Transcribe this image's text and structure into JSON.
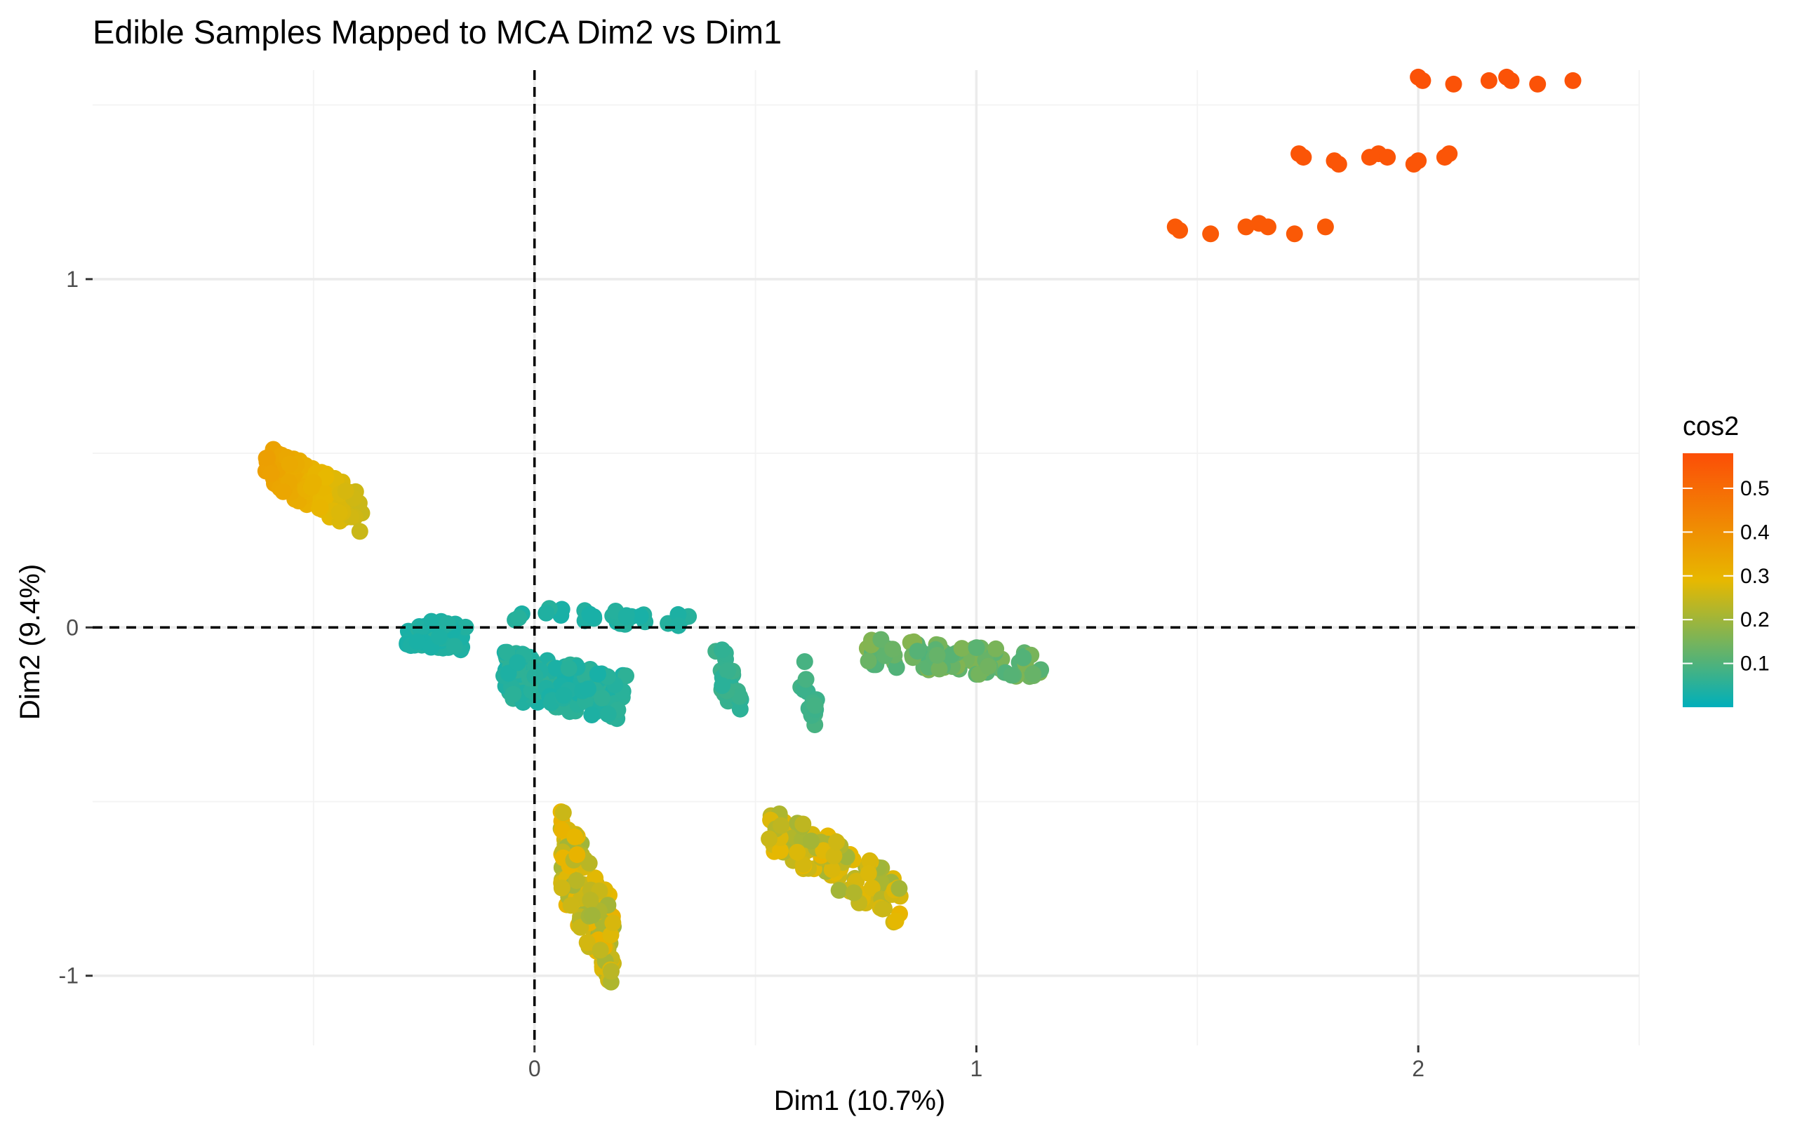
{
  "chart_data": {
    "type": "scatter",
    "title": "Edible Samples Mapped to MCA Dim2 vs Dim1",
    "xlabel": "Dim1 (10.7%)",
    "ylabel": "Dim2 (9.4%)",
    "xlim": [
      -1.0,
      2.5
    ],
    "ylim": [
      -1.2,
      1.6
    ],
    "x_ticks": [
      0,
      1,
      2
    ],
    "x_tick_labels": [
      "0",
      "1",
      "2"
    ],
    "y_ticks": [
      -1,
      0,
      1
    ],
    "y_tick_labels": [
      "-1",
      "0",
      "1"
    ],
    "grid": true,
    "reference_lines": {
      "x": 0,
      "y": 0,
      "style": "dashed"
    },
    "color_variable": "cos2",
    "legend": {
      "title": "cos2",
      "position": "right",
      "type": "colorbar",
      "range": [
        0.0,
        0.58
      ],
      "ticks": [
        0.1,
        0.2,
        0.3,
        0.4,
        0.5
      ],
      "tick_labels": [
        "0.1",
        "0.2",
        "0.3",
        "0.4",
        "0.5"
      ],
      "colors": [
        "#00AFBB",
        "#E7B800",
        "#FC4E07"
      ]
    },
    "points": [
      {
        "x": 2.0,
        "y": 1.58,
        "cos2": 0.57
      },
      {
        "x": 2.01,
        "y": 1.57,
        "cos2": 0.57
      },
      {
        "x": 2.08,
        "y": 1.56,
        "cos2": 0.57
      },
      {
        "x": 2.16,
        "y": 1.57,
        "cos2": 0.57
      },
      {
        "x": 2.2,
        "y": 1.58,
        "cos2": 0.57
      },
      {
        "x": 2.21,
        "y": 1.57,
        "cos2": 0.57
      },
      {
        "x": 2.27,
        "y": 1.56,
        "cos2": 0.57
      },
      {
        "x": 2.35,
        "y": 1.57,
        "cos2": 0.57
      },
      {
        "x": 1.73,
        "y": 1.36,
        "cos2": 0.56
      },
      {
        "x": 1.74,
        "y": 1.35,
        "cos2": 0.56
      },
      {
        "x": 1.81,
        "y": 1.34,
        "cos2": 0.56
      },
      {
        "x": 1.82,
        "y": 1.33,
        "cos2": 0.56
      },
      {
        "x": 1.89,
        "y": 1.35,
        "cos2": 0.56
      },
      {
        "x": 1.91,
        "y": 1.36,
        "cos2": 0.56
      },
      {
        "x": 1.93,
        "y": 1.35,
        "cos2": 0.56
      },
      {
        "x": 1.99,
        "y": 1.33,
        "cos2": 0.56
      },
      {
        "x": 2.0,
        "y": 1.34,
        "cos2": 0.56
      },
      {
        "x": 2.06,
        "y": 1.35,
        "cos2": 0.56
      },
      {
        "x": 2.07,
        "y": 1.36,
        "cos2": 0.56
      },
      {
        "x": 1.45,
        "y": 1.15,
        "cos2": 0.55
      },
      {
        "x": 1.46,
        "y": 1.14,
        "cos2": 0.55
      },
      {
        "x": 1.53,
        "y": 1.13,
        "cos2": 0.55
      },
      {
        "x": 1.61,
        "y": 1.15,
        "cos2": 0.55
      },
      {
        "x": 1.64,
        "y": 1.16,
        "cos2": 0.55
      },
      {
        "x": 1.66,
        "y": 1.15,
        "cos2": 0.55
      },
      {
        "x": 1.72,
        "y": 1.13,
        "cos2": 0.55
      },
      {
        "x": 1.79,
        "y": 1.15,
        "cos2": 0.55
      }
    ],
    "clusters": [
      {
        "center": [
          -0.5,
          0.4
        ],
        "spread": [
          0.11,
          0.06
        ],
        "slope": -0.65,
        "n": 140,
        "cos2": [
          0.25,
          0.36
        ],
        "cos2_gradient": "decreasing-x"
      },
      {
        "center": [
          0.07,
          -0.17
        ],
        "spread": [
          0.14,
          0.07
        ],
        "slope": -0.25,
        "n": 150,
        "cos2": [
          0.03,
          0.06
        ]
      },
      {
        "center": [
          -0.22,
          -0.02
        ],
        "spread": [
          0.07,
          0.04
        ],
        "slope": -0.1,
        "n": 50,
        "cos2": [
          0.03,
          0.05
        ]
      },
      {
        "center": [
          0.15,
          0.03
        ],
        "spread": [
          0.2,
          0.02
        ],
        "slope": -0.05,
        "n": 30,
        "cos2": [
          0.03,
          0.05
        ]
      },
      {
        "center": [
          0.44,
          -0.15
        ],
        "spread": [
          0.03,
          0.07
        ],
        "slope": -2.5,
        "n": 25,
        "cos2": [
          0.05,
          0.08
        ]
      },
      {
        "center": [
          0.62,
          -0.18
        ],
        "spread": [
          0.02,
          0.06
        ],
        "slope": -3.0,
        "n": 14,
        "cos2": [
          0.07,
          0.09
        ]
      },
      {
        "center": [
          0.95,
          -0.09
        ],
        "spread": [
          0.2,
          0.04
        ],
        "slope": -0.1,
        "n": 90,
        "cos2": [
          0.1,
          0.17
        ]
      },
      {
        "center": [
          0.12,
          -0.78
        ],
        "spread": [
          0.06,
          0.13
        ],
        "slope": -2.4,
        "n": 150,
        "cos2": [
          0.2,
          0.31
        ]
      },
      {
        "center": [
          0.68,
          -0.68
        ],
        "spread": [
          0.15,
          0.07
        ],
        "slope": -0.75,
        "n": 110,
        "cos2": [
          0.2,
          0.3
        ]
      }
    ]
  }
}
